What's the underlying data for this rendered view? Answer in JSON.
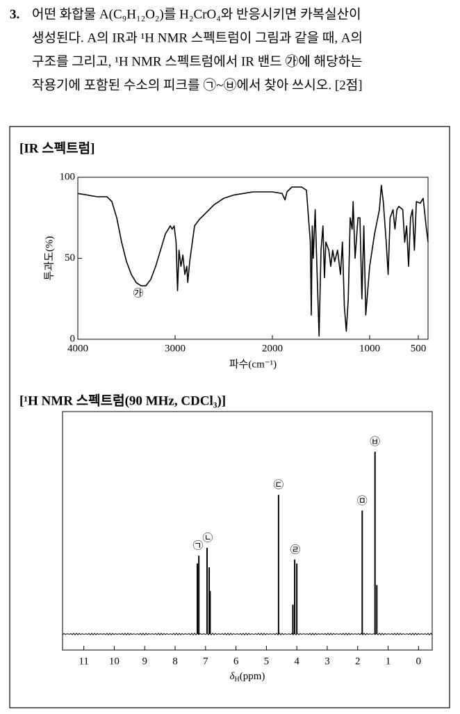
{
  "question": {
    "number": "3.",
    "lines": [
      "어떤 화합물 A(C₉H₁₂O₂)를 H₂CrO₄와 반응시키면 카복실산이",
      "생성된다. A의 IR과 ¹H NMR 스펙트럼이 그림과 같을 때, A의",
      "구조를 그리고, ¹H NMR 스펙트럼에서 IR 밴드 ㉮에 해당하는",
      "작용기에 포함된 수소의 피크를 ㉠~㉥에서 찾아 쓰시오. [2점]"
    ]
  },
  "chart_data": [
    {
      "type": "line",
      "title": "[IR 스펙트럼]",
      "ylabel": "투과도(%)",
      "xlabel": "파수(cm⁻¹)",
      "color": "#000000",
      "annotation": "㉮",
      "xlim": [
        4000,
        400
      ],
      "xticks": [
        4000,
        3000,
        2000,
        1000,
        500
      ],
      "ylim": [
        0,
        100
      ],
      "yticks": [
        0,
        50,
        100
      ],
      "x": [
        4000,
        3900,
        3800,
        3700,
        3650,
        3600,
        3550,
        3500,
        3450,
        3400,
        3350,
        3300,
        3250,
        3200,
        3150,
        3100,
        3050,
        3030,
        3010,
        2990,
        2975,
        2960,
        2940,
        2920,
        2900,
        2880,
        2870,
        2850,
        2800,
        2750,
        2700,
        2600,
        2500,
        2400,
        2300,
        2200,
        2100,
        2000,
        1900,
        1870,
        1850,
        1800,
        1700,
        1650,
        1610,
        1600,
        1590,
        1580,
        1560,
        1540,
        1520,
        1500,
        1480,
        1465,
        1450,
        1420,
        1400,
        1380,
        1360,
        1330,
        1300,
        1280,
        1260,
        1240,
        1220,
        1200,
        1180,
        1170,
        1150,
        1120,
        1100,
        1080,
        1060,
        1040,
        1020,
        1000,
        950,
        900,
        880,
        860,
        830,
        810,
        790,
        760,
        740,
        720,
        700,
        660,
        640,
        620,
        600,
        580,
        560,
        540,
        520,
        480,
        450,
        420,
        400
      ],
      "values": [
        90,
        89,
        88,
        88,
        85,
        75,
        60,
        48,
        40,
        35,
        33,
        33,
        37,
        45,
        55,
        65,
        70,
        68,
        70,
        60,
        30,
        55,
        45,
        52,
        40,
        45,
        35,
        48,
        70,
        74,
        77,
        83,
        87,
        89,
        90,
        91,
        91,
        91,
        90,
        86,
        91,
        94,
        94,
        92,
        60,
        15,
        70,
        50,
        80,
        40,
        2,
        55,
        70,
        38,
        60,
        55,
        45,
        55,
        48,
        55,
        40,
        60,
        20,
        5,
        25,
        75,
        68,
        85,
        50,
        75,
        75,
        25,
        70,
        15,
        30,
        45,
        65,
        80,
        95,
        85,
        60,
        40,
        75,
        80,
        68,
        80,
        82,
        80,
        60,
        70,
        45,
        75,
        80,
        55,
        85,
        84,
        87,
        70,
        60
      ]
    },
    {
      "type": "peaks",
      "title": "[¹H NMR 스펙트럼(90 MHz, CDCl₃)]",
      "xlabel": {
        "symbol": "δ",
        "sub": "H",
        "unit": "(ppm)"
      },
      "color": "#000000",
      "xlim": [
        11.7,
        -0.45
      ],
      "xticks": [
        11,
        10,
        9,
        8,
        7,
        6,
        5,
        4,
        3,
        2,
        1,
        0
      ],
      "ylim": [
        0,
        100
      ],
      "x": [
        7.27,
        7.22,
        6.95,
        6.88,
        6.85,
        4.6,
        4.13,
        4.07,
        4.0,
        1.85,
        1.43,
        1.37
      ],
      "values": [
        36,
        40,
        44,
        34,
        22,
        71,
        15,
        38,
        36,
        63,
        93,
        25
      ],
      "peak_labels": [
        "㉠",
        "㉡",
        "㉢",
        "㉣",
        "㉤",
        "㉥"
      ],
      "peak_label_x": [
        7.25,
        6.93,
        4.6,
        4.05,
        1.85,
        1.43
      ]
    }
  ]
}
